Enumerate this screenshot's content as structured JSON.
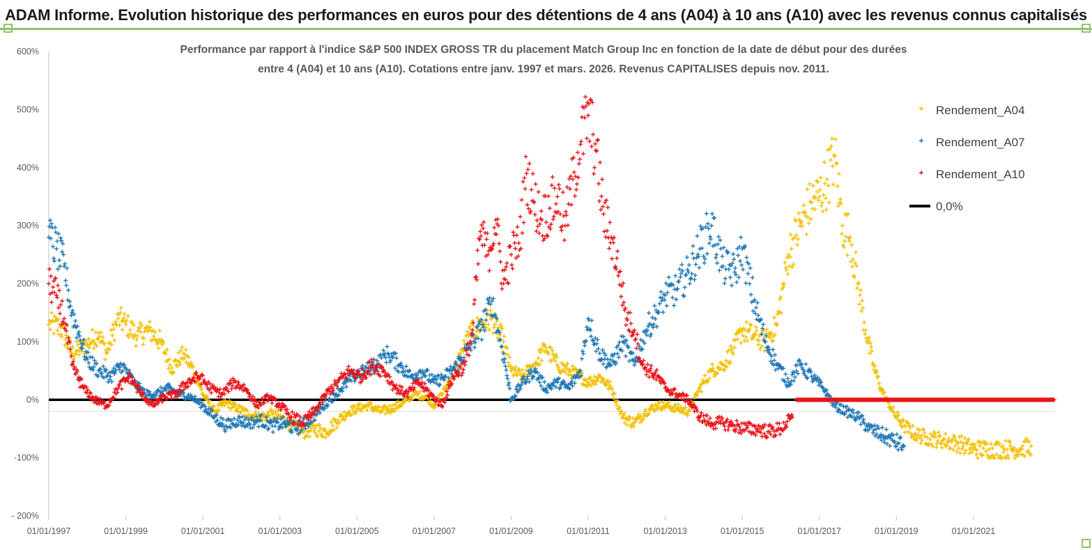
{
  "header": {
    "title": "ADAM Informe. Evolution historique des performances en euros pour des détentions de 4 ans (A04) à 10 ans (A10) avec les revenus connus capitalisés"
  },
  "colors": {
    "a04": "#f2c000",
    "a07": "#1f77b4",
    "a10": "#e8141a",
    "zero": "#000000",
    "accent": "#8fc46a"
  },
  "chart_data": {
    "type": "scatter",
    "title_line1": "Performance par rapport à l'indice S&P 500 INDEX GROSS TR  du placement Match Group Inc en fonction de la date de début pour des durées",
    "title_line2": "entre 4 (A04) et 10 ans (A10). Cotations entre janv. 1997 et mars. 2026. Revenus CAPITALISES depuis nov. 2011.",
    "xlabel": "",
    "ylabel": "",
    "ylim": [
      -200,
      600
    ],
    "xlim": [
      1997.0,
      2023.1
    ],
    "y_ticks": [
      {
        "v": 600,
        "label": "600%"
      },
      {
        "v": 500,
        "label": "500%"
      },
      {
        "v": 400,
        "label": "400%"
      },
      {
        "v": 300,
        "label": "300%"
      },
      {
        "v": 200,
        "label": "200%"
      },
      {
        "v": 100,
        "label": "100%"
      },
      {
        "v": 0,
        "label": "0%"
      },
      {
        "v": -100,
        "label": "-100%"
      },
      {
        "v": -200,
        "label": "- 200%"
      }
    ],
    "x_ticks": [
      {
        "v": 1997,
        "label": "01/01/1997"
      },
      {
        "v": 1999,
        "label": "01/01/1999"
      },
      {
        "v": 2001,
        "label": "01/01/2001"
      },
      {
        "v": 2003,
        "label": "01/01/2003"
      },
      {
        "v": 2005,
        "label": "01/01/2005"
      },
      {
        "v": 2007,
        "label": "01/01/2007"
      },
      {
        "v": 2009,
        "label": "01/01/2009"
      },
      {
        "v": 2011,
        "label": "01/01/2011"
      },
      {
        "v": 2013,
        "label": "01/01/2013"
      },
      {
        "v": 2015,
        "label": "01/01/2015"
      },
      {
        "v": 2017,
        "label": "01/01/2017"
      },
      {
        "v": 2019,
        "label": "01/01/2019"
      },
      {
        "v": 2021,
        "label": "01/01/2021"
      }
    ],
    "series": [
      {
        "name": "Rendement_A04",
        "color_key": "a04",
        "marker": "+",
        "x": [
          1997.0,
          1997.3,
          1997.6,
          1998.0,
          1998.3,
          1998.5,
          1998.8,
          1999.0,
          1999.3,
          1999.6,
          1999.9,
          2000.2,
          2000.5,
          2000.8,
          2001.0,
          2001.3,
          2001.6,
          2001.9,
          2002.2,
          2002.5,
          2002.8,
          2003.0,
          2003.3,
          2003.6,
          2003.9,
          2004.2,
          2004.5,
          2004.8,
          2005.0,
          2005.3,
          2005.6,
          2005.9,
          2006.2,
          2006.5,
          2006.8,
          2007.0,
          2007.3,
          2007.6,
          2007.9,
          2008.2,
          2008.5,
          2008.8,
          2009.0,
          2009.3,
          2009.6,
          2009.9,
          2010.2,
          2010.5,
          2010.8,
          2011.0,
          2011.3,
          2011.6,
          2011.9,
          2012.2,
          2012.5,
          2012.8,
          2013.0,
          2013.3,
          2013.6,
          2013.9,
          2014.2,
          2014.5,
          2014.8,
          2015.0,
          2015.3,
          2015.6,
          2015.9,
          2016.2,
          2016.5,
          2016.8,
          2017.0,
          2017.2,
          2017.4,
          2017.6,
          2017.8,
          2018.0,
          2018.2,
          2018.4,
          2018.6,
          2018.9,
          2019.2,
          2019.5,
          2019.8,
          2020.2,
          2020.6,
          2021.0,
          2021.4,
          2021.8,
          2022.2,
          2022.5
        ],
        "values": [
          130,
          125,
          80,
          95,
          115,
          80,
          140,
          130,
          110,
          120,
          100,
          55,
          80,
          45,
          10,
          -20,
          -5,
          -15,
          -25,
          -30,
          -25,
          -30,
          -45,
          -55,
          -50,
          -55,
          -35,
          -20,
          -15,
          -10,
          -20,
          -15,
          -5,
          10,
          5,
          -10,
          20,
          60,
          110,
          130,
          140,
          100,
          50,
          40,
          60,
          90,
          60,
          50,
          40,
          30,
          40,
          20,
          -30,
          -40,
          -20,
          -10,
          -10,
          -15,
          -20,
          20,
          50,
          60,
          90,
          120,
          110,
          100,
          130,
          250,
          300,
          340,
          350,
          380,
          420,
          300,
          280,
          200,
          120,
          60,
          20,
          -20,
          -45,
          -60,
          -65,
          -70,
          -75,
          -85,
          -85,
          -85,
          -85,
          -80
        ]
      },
      {
        "name": "Rendement_A07",
        "color_key": "a07",
        "marker": "+",
        "x": [
          1997.0,
          1997.2,
          1997.4,
          1997.6,
          1997.8,
          1998.0,
          1998.3,
          1998.6,
          1998.9,
          1999.2,
          1999.5,
          1999.8,
          2000.1,
          2000.4,
          2000.7,
          2001.0,
          2001.3,
          2001.6,
          2001.9,
          2002.2,
          2002.5,
          2002.8,
          2003.1,
          2003.4,
          2003.7,
          2004.0,
          2004.3,
          2004.6,
          2004.9,
          2005.2,
          2005.5,
          2005.8,
          2006.1,
          2006.4,
          2006.7,
          2007.0,
          2007.3,
          2007.6,
          2007.9,
          2008.2,
          2008.5,
          2008.8,
          2009.0,
          2009.3,
          2009.6,
          2009.9,
          2010.2,
          2010.5,
          2010.8,
          2011.0,
          2011.3,
          2011.6,
          2011.9,
          2012.2,
          2012.5,
          2012.8,
          2013.0,
          2013.3,
          2013.6,
          2013.9,
          2014.2,
          2014.5,
          2014.8,
          2015.0,
          2015.3,
          2015.6,
          2015.9,
          2016.2,
          2016.5,
          2016.8,
          2017.1,
          2017.4,
          2017.7,
          2018.0,
          2018.3,
          2018.6,
          2018.9,
          2019.2
        ],
        "values": [
          280,
          260,
          230,
          150,
          110,
          70,
          50,
          40,
          60,
          30,
          10,
          10,
          20,
          10,
          5,
          -10,
          -30,
          -45,
          -35,
          -40,
          -35,
          -45,
          -40,
          -50,
          -40,
          -20,
          0,
          20,
          40,
          50,
          60,
          80,
          60,
          40,
          50,
          30,
          40,
          60,
          90,
          120,
          170,
          80,
          0,
          30,
          50,
          20,
          30,
          20,
          50,
          140,
          80,
          60,
          100,
          60,
          120,
          150,
          180,
          190,
          220,
          260,
          300,
          230,
          220,
          260,
          170,
          100,
          60,
          30,
          60,
          40,
          20,
          -10,
          -20,
          -30,
          -50,
          -60,
          -70,
          -80
        ]
      },
      {
        "name": "Rendement_A10",
        "color_key": "a10",
        "marker": "+",
        "x": [
          1997.0,
          1997.2,
          1997.4,
          1997.6,
          1997.9,
          1998.2,
          1998.5,
          1998.8,
          1999.1,
          1999.4,
          1999.7,
          2000.0,
          2000.3,
          2000.6,
          2000.9,
          2001.2,
          2001.5,
          2001.8,
          2002.1,
          2002.4,
          2002.7,
          2003.0,
          2003.3,
          2003.6,
          2003.9,
          2004.2,
          2004.5,
          2004.8,
          2005.1,
          2005.4,
          2005.7,
          2006.0,
          2006.3,
          2006.6,
          2006.9,
          2007.2,
          2007.5,
          2007.8,
          2008.0,
          2008.2,
          2008.4,
          2008.6,
          2008.8,
          2009.0,
          2009.2,
          2009.4,
          2009.6,
          2009.8,
          2010.0,
          2010.2,
          2010.4,
          2010.6,
          2010.8,
          2011.0,
          2011.2,
          2011.4,
          2011.6,
          2011.8,
          2012.0,
          2012.2,
          2012.4,
          2012.6,
          2012.8,
          2013.0,
          2013.3,
          2013.6,
          2013.9,
          2014.2,
          2014.5,
          2014.8,
          2015.1,
          2015.4,
          2015.7,
          2016.0,
          2016.3
        ],
        "values": [
          200,
          180,
          140,
          60,
          20,
          0,
          -10,
          20,
          40,
          10,
          -10,
          5,
          10,
          30,
          40,
          20,
          10,
          30,
          20,
          -10,
          5,
          -10,
          -30,
          -40,
          -20,
          10,
          30,
          50,
          40,
          60,
          50,
          20,
          10,
          30,
          10,
          -10,
          40,
          60,
          120,
          290,
          250,
          310,
          200,
          250,
          270,
          390,
          340,
          310,
          330,
          350,
          300,
          380,
          440,
          490,
          430,
          320,
          280,
          220,
          140,
          120,
          60,
          50,
          40,
          20,
          10,
          0,
          -30,
          -40,
          -40,
          -45,
          -50,
          -50,
          -55,
          -50,
          -30
        ]
      },
      {
        "name": "0,0%",
        "color_key": "zero",
        "marker": "line",
        "x": [
          1997.0,
          2023.1
        ],
        "values": [
          0,
          0
        ]
      }
    ],
    "legend": [
      {
        "label": "Rendement_A04",
        "color_key": "a04",
        "marker": "+"
      },
      {
        "label": "Rendement_A07",
        "color_key": "a07",
        "marker": "+"
      },
      {
        "label": "Rendement_A10",
        "color_key": "a10",
        "marker": "+"
      },
      {
        "label": "0,0%",
        "color_key": "zero",
        "marker": "line"
      }
    ],
    "legend_position": "top-right"
  }
}
